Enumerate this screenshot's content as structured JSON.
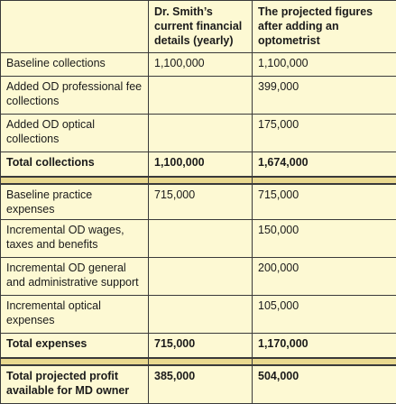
{
  "header": {
    "col1": "",
    "col2": "Dr. Smith’s current financial details (yearly)",
    "col3": "The projected figures after adding an optometrist"
  },
  "collections": [
    {
      "label": "Baseline collections",
      "current": "1,100,000",
      "projected": "1,100,000"
    },
    {
      "label": "Added OD professional fee collections",
      "current": "",
      "projected": "399,000"
    },
    {
      "label": "Added OD optical collections",
      "current": "",
      "projected": "175,000"
    }
  ],
  "total_collections": {
    "label": "Total collections",
    "current": "1,100,000",
    "projected": "1,674,000"
  },
  "expenses": [
    {
      "label": "Baseline practice expenses",
      "current": "715,000",
      "projected": "715,000"
    },
    {
      "label": "Incremental OD wages, taxes and benefits",
      "current": "",
      "projected": "150,000"
    },
    {
      "label": "Incremental OD general and administrative support",
      "current": "",
      "projected": "200,000"
    },
    {
      "label": "Incremental optical expenses",
      "current": "",
      "projected": "105,000"
    }
  ],
  "total_expenses": {
    "label": "Total expenses",
    "current": "715,000",
    "projected": "1,170,000"
  },
  "profit": {
    "label": "Total projected profit available for MD owner",
    "current": "385,000",
    "projected": "504,000"
  },
  "colors": {
    "background": "#fdf9d3",
    "separator": "#e9d98f",
    "border": "#3a3a3a"
  }
}
